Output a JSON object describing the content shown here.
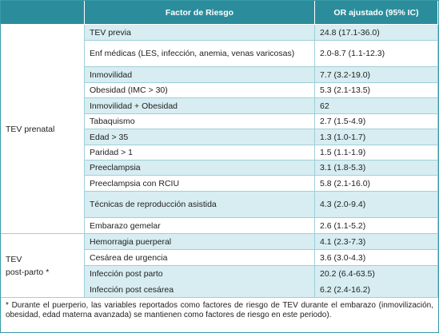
{
  "table": {
    "headers": [
      "Factor de Riesgo",
      "OR ajustado (95% IC)"
    ],
    "groups": [
      {
        "label": [
          "TEV prenatal"
        ],
        "rows": [
          [
            "TEV previa",
            "24.8 (17.1-36.0)"
          ],
          [
            "Enf médicas (LES, infección, anemia, venas varicosas)",
            "2.0-8.7 (1.1-12.3)"
          ],
          [
            "Inmovilidad",
            "7.7 (3.2-19.0)"
          ],
          [
            "Obesidad (IMC > 30)",
            "5.3 (2.1-13.5)"
          ],
          [
            "Inmovilidad + Obesidad",
            "62"
          ],
          [
            "Tabaquismo",
            "2.7 (1.5-4.9)"
          ],
          [
            "Edad > 35",
            "1.3 (1.0-1.7)"
          ],
          [
            "Paridad > 1",
            "1.5 (1.1-1.9)"
          ],
          [
            "Preeclampsia",
            "3.1 (1.8-5.3)"
          ],
          [
            "Preeclampsia con RCIU",
            "5.8 (2.1-16.0)"
          ],
          [
            "Técnicas de reproducción asistida",
            "4.3 (2.0-9.4)"
          ],
          [
            "Embarazo gemelar",
            "2.6 (1.1-5.2)"
          ]
        ]
      },
      {
        "label": [
          "TEV",
          "post-parto *"
        ],
        "rows": [
          [
            "Hemorragia puerperal",
            "4.1 (2.3-7.3)"
          ],
          [
            "Cesárea de urgencia",
            "3.6 (3.0-4.3)"
          ],
          [
            "Infección post parto",
            "20.2 (6.4-63.5)"
          ],
          [
            "Infección post cesárea",
            "6.2 (2.4-16.2)"
          ]
        ]
      }
    ]
  },
  "footnote": "* Durante el puerperio, las variables reportados como factores de riesgo de TEV durante el embarazo (inmovilización, obesidad, edad materna avanzada) se mantienen como factores de riesgo en este periodo)."
}
